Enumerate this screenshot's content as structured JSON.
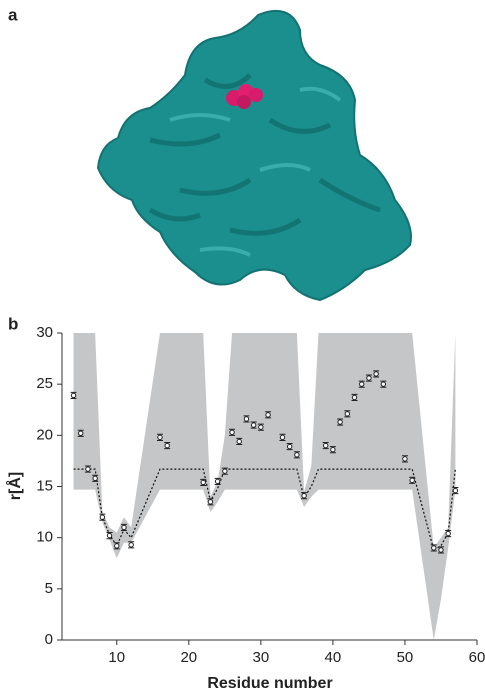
{
  "panel_a": {
    "label": "a"
  },
  "chart_data": {
    "type": "errorbar",
    "panel_label": "b",
    "x_label": "Residue number",
    "y_label": "r[Å]",
    "xlim": [
      2.4,
      60
    ],
    "ylim": [
      0,
      30
    ],
    "xticks": [
      10,
      20,
      30,
      40,
      50,
      60
    ],
    "yticks": [
      0,
      5,
      10,
      15,
      20,
      25,
      30
    ],
    "x": [
      4,
      5,
      6,
      7,
      8,
      9,
      10,
      11,
      12,
      16,
      17,
      22,
      23,
      24,
      25,
      26,
      27,
      28,
      29,
      30,
      31,
      33,
      34,
      35,
      36,
      39,
      40,
      41,
      42,
      43,
      44,
      45,
      46,
      47,
      50,
      51,
      54,
      55,
      56,
      57
    ],
    "values": [
      23.9,
      20.2,
      16.7,
      15.8,
      12.0,
      10.2,
      9.2,
      11.0,
      9.3,
      19.8,
      19.0,
      15.4,
      13.5,
      15.5,
      16.5,
      20.3,
      19.4,
      21.6,
      21.0,
      20.8,
      22.0,
      19.8,
      18.9,
      18.1,
      14.1,
      19.0,
      18.6,
      21.3,
      22.1,
      23.7,
      25.0,
      25.6,
      26.0,
      25.0,
      17.7,
      15.6,
      9.0,
      8.8,
      10.4,
      14.6
    ],
    "errors": [
      0.3,
      0.3,
      0.3,
      0.3,
      0.3,
      0.3,
      0.3,
      0.3,
      0.3,
      0.3,
      0.3,
      0.3,
      0.3,
      0.3,
      0.3,
      0.3,
      0.3,
      0.3,
      0.3,
      0.3,
      0.3,
      0.3,
      0.3,
      0.3,
      0.3,
      0.3,
      0.3,
      0.3,
      0.3,
      0.3,
      0.3,
      0.3,
      0.3,
      0.3,
      0.3,
      0.3,
      0.3,
      0.3,
      0.3,
      0.3
    ],
    "color": "#222222",
    "band": {
      "color": "#c4c6c8",
      "x": [
        4,
        7,
        8,
        9,
        10,
        11,
        12,
        16,
        22,
        23,
        24,
        25,
        26,
        35,
        36,
        37,
        38,
        51,
        54,
        55,
        56,
        57
      ],
      "upper": [
        30,
        30,
        12.5,
        11,
        10.5,
        12,
        11,
        30,
        30,
        14,
        15.5,
        20,
        30,
        30,
        14.5,
        17,
        30,
        30,
        9,
        10,
        11,
        30
      ],
      "lower": [
        14.7,
        14.7,
        11.5,
        9.8,
        8,
        9.5,
        9.5,
        14.7,
        14.7,
        12.5,
        13.5,
        14.7,
        14.7,
        14.7,
        13,
        14,
        14.7,
        14.7,
        0,
        4,
        9,
        14.7
      ]
    },
    "model_line": {
      "color": "#111111",
      "x": [
        4,
        7,
        8,
        9,
        10,
        11,
        12,
        16,
        22,
        23,
        24,
        25,
        35,
        36,
        37,
        38,
        51,
        54,
        55,
        56,
        57
      ],
      "values": [
        16.7,
        16.7,
        12,
        10.3,
        9.2,
        10.8,
        10,
        16.7,
        16.7,
        13.6,
        14.8,
        16.7,
        16.7,
        13.9,
        15,
        16.7,
        16.7,
        8.8,
        9.2,
        10.5,
        16.7
      ]
    }
  }
}
